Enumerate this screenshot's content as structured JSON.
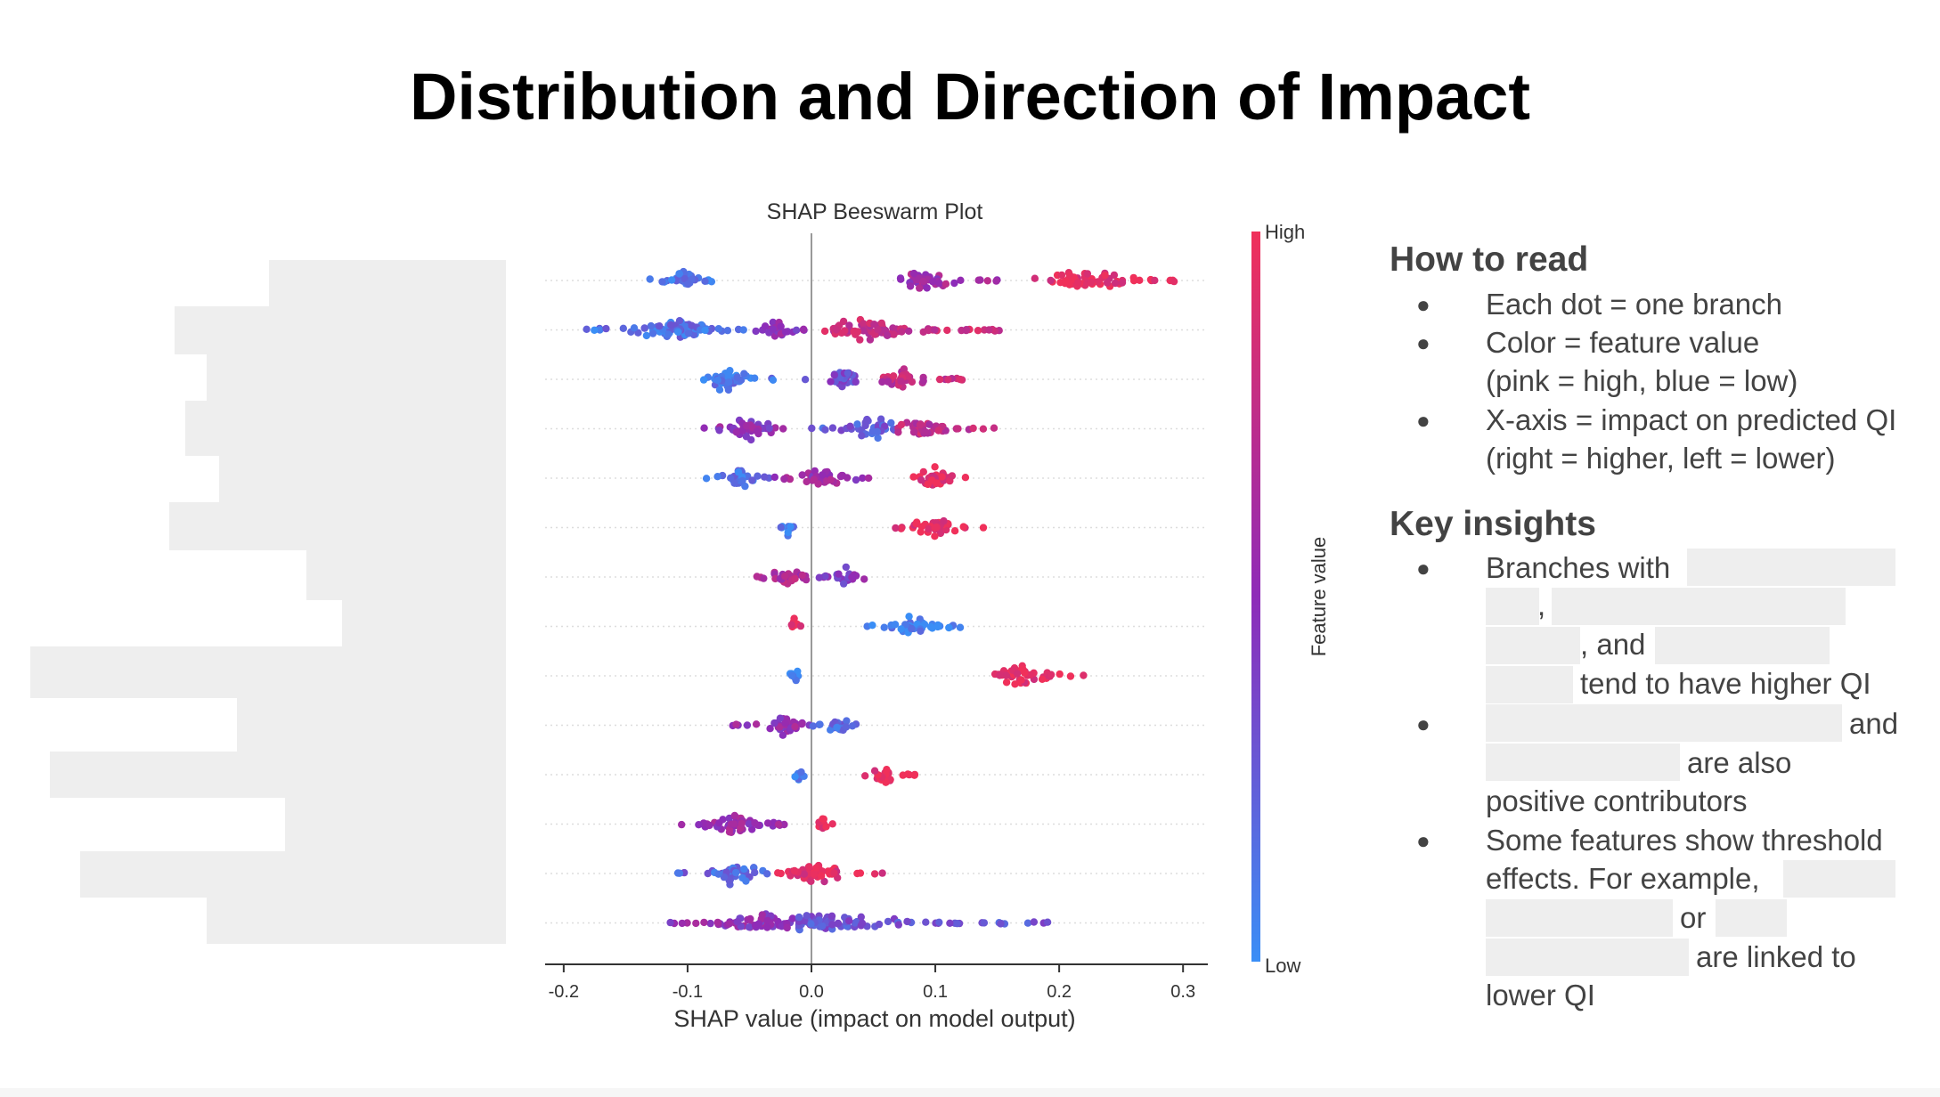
{
  "slide": {
    "title": "Distribution and Direction of Impact"
  },
  "chart_data": {
    "type": "scatter",
    "title": "SHAP Beeswarm Plot",
    "xlabel": "SHAP value (impact on model output)",
    "ylabel": "",
    "xlim": [
      -0.215,
      0.32
    ],
    "x_ticks": [
      "-0.2",
      "-0.1",
      "0.0",
      "0.1",
      "0.2",
      "0.3"
    ],
    "x_tick_values": [
      -0.2,
      -0.1,
      0.0,
      0.1,
      0.2,
      0.3
    ],
    "legend_position": "right",
    "colorbar": {
      "label": "Feature value",
      "high_label": "High",
      "low_label": "Low",
      "low_color": "#3a8ef6",
      "mid_color": "#8e2bb8",
      "high_color": "#f0305a"
    },
    "feature_labels_visible": false,
    "features": [
      {
        "feature_index": 1,
        "clusters": [
          {
            "min": -0.145,
            "max": -0.08,
            "center": -0.105,
            "color_value": 0.1
          },
          {
            "min": 0.07,
            "max": 0.15,
            "center": 0.09,
            "color_value": 0.6
          },
          {
            "min": 0.18,
            "max": 0.3,
            "center": 0.22,
            "color_value": 0.95
          }
        ]
      },
      {
        "feature_index": 2,
        "clusters": [
          {
            "min": -0.19,
            "max": -0.05,
            "center": -0.11,
            "color_value": 0.15
          },
          {
            "min": -0.05,
            "max": 0.0,
            "center": -0.03,
            "color_value": 0.5
          },
          {
            "min": 0.0,
            "max": 0.155,
            "center": 0.04,
            "color_value": 0.8
          }
        ]
      },
      {
        "feature_index": 3,
        "clusters": [
          {
            "min": -0.11,
            "max": -0.02,
            "center": -0.07,
            "color_value": 0.1
          },
          {
            "min": -0.01,
            "max": 0.04,
            "center": 0.025,
            "color_value": 0.35
          },
          {
            "min": 0.05,
            "max": 0.125,
            "center": 0.075,
            "color_value": 0.75
          }
        ]
      },
      {
        "feature_index": 4,
        "clusters": [
          {
            "min": -0.09,
            "max": -0.01,
            "center": -0.05,
            "color_value": 0.5
          },
          {
            "min": 0.0,
            "max": 0.07,
            "center": 0.05,
            "color_value": 0.25
          },
          {
            "min": 0.07,
            "max": 0.15,
            "center": 0.09,
            "color_value": 0.75
          }
        ]
      },
      {
        "feature_index": 5,
        "clusters": [
          {
            "min": -0.09,
            "max": -0.03,
            "center": -0.06,
            "color_value": 0.15
          },
          {
            "min": -0.03,
            "max": 0.05,
            "center": 0.01,
            "color_value": 0.55
          },
          {
            "min": 0.075,
            "max": 0.135,
            "center": 0.1,
            "color_value": 0.95
          }
        ]
      },
      {
        "feature_index": 6,
        "clusters": [
          {
            "min": -0.025,
            "max": -0.01,
            "center": -0.018,
            "color_value": 0.08
          },
          {
            "min": 0.065,
            "max": 0.14,
            "center": 0.1,
            "color_value": 0.97
          }
        ]
      },
      {
        "feature_index": 7,
        "clusters": [
          {
            "min": -0.055,
            "max": 0.0,
            "center": -0.02,
            "color_value": 0.65
          },
          {
            "min": 0.0,
            "max": 0.045,
            "center": 0.03,
            "color_value": 0.45
          }
        ]
      },
      {
        "feature_index": 8,
        "clusters": [
          {
            "min": -0.02,
            "max": -0.008,
            "center": -0.014,
            "color_value": 0.97
          },
          {
            "min": 0.04,
            "max": 0.125,
            "center": 0.08,
            "color_value": 0.05
          }
        ]
      },
      {
        "feature_index": 9,
        "clusters": [
          {
            "min": -0.02,
            "max": -0.006,
            "center": -0.013,
            "color_value": 0.05
          },
          {
            "min": 0.128,
            "max": 0.22,
            "center": 0.17,
            "color_value": 0.97
          }
        ]
      },
      {
        "feature_index": 10,
        "clusters": [
          {
            "min": -0.07,
            "max": 0.0,
            "center": -0.02,
            "color_value": 0.55
          },
          {
            "min": 0.0,
            "max": 0.045,
            "center": 0.022,
            "color_value": 0.2
          }
        ]
      },
      {
        "feature_index": 11,
        "clusters": [
          {
            "min": -0.015,
            "max": -0.004,
            "center": -0.01,
            "color_value": 0.05
          },
          {
            "min": 0.04,
            "max": 0.085,
            "center": 0.06,
            "color_value": 0.97
          }
        ]
      },
      {
        "feature_index": 12,
        "clusters": [
          {
            "min": -0.12,
            "max": -0.02,
            "center": -0.06,
            "color_value": 0.55
          },
          {
            "min": 0.0,
            "max": 0.022,
            "center": 0.008,
            "color_value": 0.97
          }
        ]
      },
      {
        "feature_index": 13,
        "clusters": [
          {
            "min": -0.11,
            "max": -0.03,
            "center": -0.06,
            "color_value": 0.2
          },
          {
            "min": -0.03,
            "max": 0.06,
            "center": 0.005,
            "color_value": 0.9
          }
        ]
      },
      {
        "feature_index": 14,
        "clusters": [
          {
            "min": -0.125,
            "max": -0.01,
            "center": -0.04,
            "color_value": 0.5
          },
          {
            "min": -0.01,
            "max": 0.21,
            "center": 0.0,
            "color_value": 0.3
          }
        ]
      }
    ]
  },
  "notes": {
    "how_to_read": {
      "title": "How to read",
      "lines": [
        "Each dot = one branch",
        "Color = feature value",
        "(pink = high, blue = low)",
        "X-axis = impact on predicted QI",
        "(right = higher, left = lower)"
      ]
    },
    "key_insights": {
      "title": "Key insights",
      "b1_a": "Branches with",
      "b1_b": ",",
      "b1_c": ", and",
      "b1_d": "tend to have higher QI",
      "b2_a": "and",
      "b2_b": "are also",
      "b2_c": "positive contributors",
      "b3_a": "Some features show threshold",
      "b3_b": "effects. For example,",
      "b3_c": "or",
      "b3_d": "are linked to",
      "b3_e": "lower QI"
    },
    "bullet_glyph": "●"
  }
}
